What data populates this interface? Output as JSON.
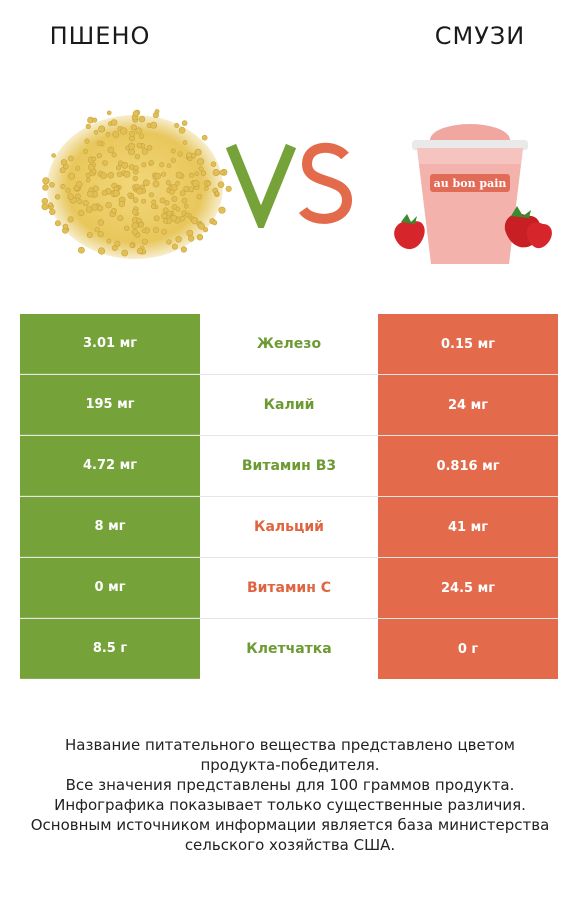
{
  "header": {
    "left_title": "ПШЕНО",
    "right_title": "СМУЗИ"
  },
  "images": {
    "left": "millet-grains",
    "right": "strawberry-smoothie-cup",
    "cup_brand": "au bon pain"
  },
  "vs": {
    "v_color": "#76a23a",
    "s_color": "#e36a4b"
  },
  "colors": {
    "left_accent": "#76a23a",
    "right_accent": "#e36a4b"
  },
  "rows": [
    {
      "left": "3.01 мг",
      "nutrient": "Железо",
      "right": "0.15 мг",
      "winner": "left"
    },
    {
      "left": "195 мг",
      "nutrient": "Калий",
      "right": "24 мг",
      "winner": "left"
    },
    {
      "left": "4.72 мг",
      "nutrient": "Витамин B3",
      "right": "0.816 мг",
      "winner": "left"
    },
    {
      "left": "8 мг",
      "nutrient": "Кальций",
      "right": "41 мг",
      "winner": "right"
    },
    {
      "left": "0 мг",
      "nutrient": "Витамин C",
      "right": "24.5 мг",
      "winner": "right"
    },
    {
      "left": "8.5 г",
      "nutrient": "Клетчатка",
      "right": "0 г",
      "winner": "left"
    }
  ],
  "footer": {
    "line1": "Название питательного вещества представлено цветом",
    "line2": "продукта-победителя.",
    "line3": "Все значения представлены для 100 граммов продукта.",
    "line4": "Инфографика показывает только существенные различия.",
    "line5": "Основным источником информации является база министерства",
    "line6": "сельского хозяйства США."
  }
}
